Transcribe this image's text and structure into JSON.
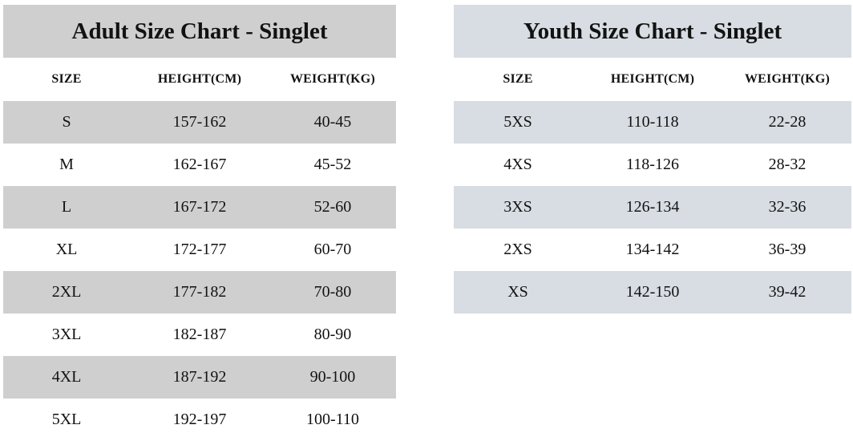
{
  "colors": {
    "background": "#ffffff",
    "text": "#121212",
    "adult_stripe": "#cfcfcf",
    "youth_stripe": "#d8dde3"
  },
  "chart_data": [
    {
      "type": "table",
      "title": "Adult Size Chart - Singlet",
      "columns": [
        "SIZE",
        "HEIGHT(CM)",
        "WEIGHT(KG)"
      ],
      "rows": [
        [
          "S",
          "157-162",
          "40-45"
        ],
        [
          "M",
          "162-167",
          "45-52"
        ],
        [
          "L",
          "167-172",
          "52-60"
        ],
        [
          "XL",
          "172-177",
          "60-70"
        ],
        [
          "2XL",
          "177-182",
          "70-80"
        ],
        [
          "3XL",
          "182-187",
          "80-90"
        ],
        [
          "4XL",
          "187-192",
          "90-100"
        ],
        [
          "5XL",
          "192-197",
          "100-110"
        ]
      ]
    },
    {
      "type": "table",
      "title": "Youth Size Chart - Singlet",
      "columns": [
        "SIZE",
        "HEIGHT(CM)",
        "WEIGHT(KG)"
      ],
      "rows": [
        [
          "5XS",
          "110-118",
          "22-28"
        ],
        [
          "4XS",
          "118-126",
          "28-32"
        ],
        [
          "3XS",
          "126-134",
          "32-36"
        ],
        [
          "2XS",
          "134-142",
          "36-39"
        ],
        [
          "XS",
          "142-150",
          "39-42"
        ]
      ]
    }
  ]
}
